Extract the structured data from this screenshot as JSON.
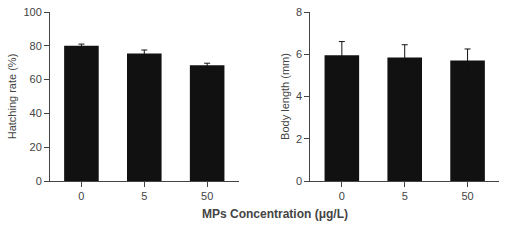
{
  "chart_data": [
    {
      "type": "bar",
      "categories": [
        "0",
        "5",
        "50"
      ],
      "values": [
        80,
        75.5,
        68.5
      ],
      "errors": [
        1.0,
        2.0,
        1.2
      ],
      "ylabel": "Hatching rate (%)",
      "xlabel": "MPs Concentration (μg/L)",
      "ylim": [
        0,
        100
      ],
      "yticks": [
        0,
        20,
        40,
        60,
        80,
        100
      ],
      "color": "#111111",
      "grid": false
    },
    {
      "type": "bar",
      "categories": [
        "0",
        "5",
        "50"
      ],
      "values": [
        5.95,
        5.85,
        5.7
      ],
      "errors": [
        0.65,
        0.6,
        0.55
      ],
      "ylabel": "Body length (mm)",
      "ylim": [
        0,
        8
      ],
      "yticks": [
        0,
        2,
        4,
        6,
        8
      ],
      "color": "#111111",
      "grid": false
    }
  ]
}
